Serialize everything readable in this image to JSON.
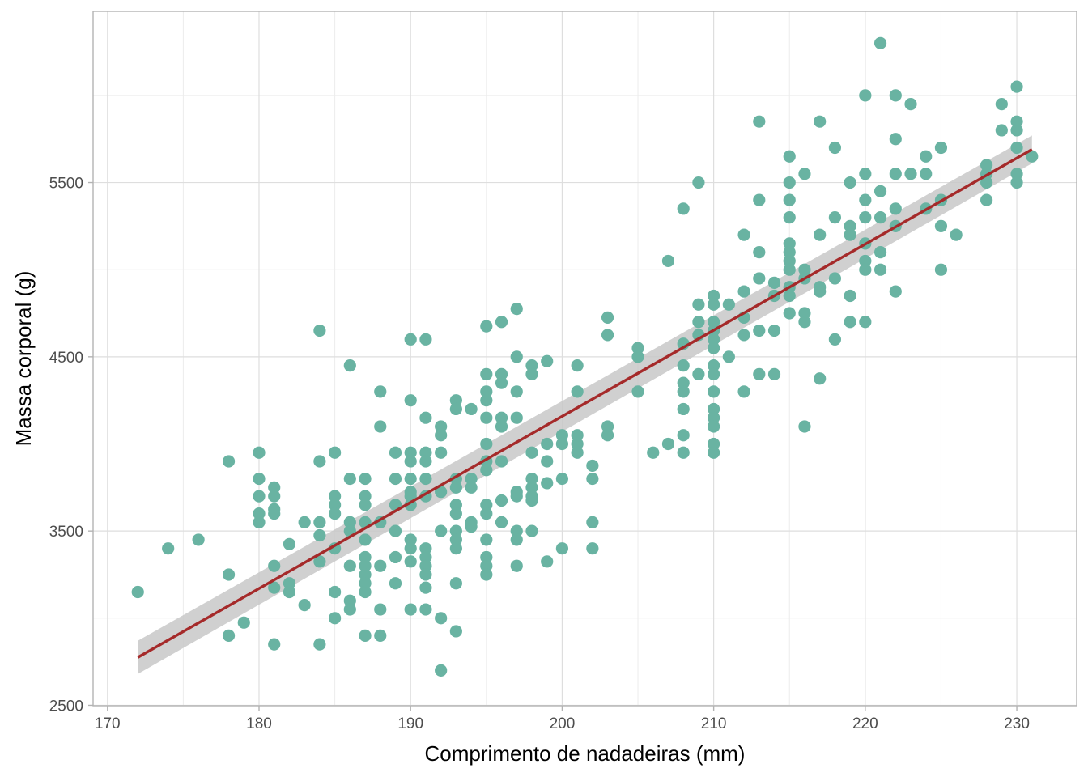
{
  "chart_data": {
    "type": "scatter",
    "title": "",
    "xlabel": "Comprimento de nadadeiras (mm)",
    "ylabel": "Massa corporal (g)",
    "xlim": [
      169.05,
      233.95
    ],
    "ylim": [
      2497.5,
      6482.5
    ],
    "x_ticks": [
      "170",
      "180",
      "190",
      "200",
      "210",
      "220",
      "230"
    ],
    "y_ticks": [
      "2500",
      "3500",
      "4500",
      "5500"
    ],
    "grid": true,
    "point_color": "#69b3a2",
    "line_color": "#a52a2a",
    "ribbon_color": "#c8c8c8",
    "regression": {
      "x": [
        172,
        231
      ],
      "fit": [
        2775,
        5690
      ],
      "lower": [
        2680,
        5610
      ],
      "upper": [
        2870,
        5770
      ]
    },
    "points": [
      [
        172,
        3150
      ],
      [
        174,
        3400
      ],
      [
        176,
        3450
      ],
      [
        178,
        3900
      ],
      [
        178,
        3250
      ],
      [
        178,
        2900
      ],
      [
        179,
        2975
      ],
      [
        180,
        3950
      ],
      [
        180,
        3800
      ],
      [
        180,
        3700
      ],
      [
        180,
        3600
      ],
      [
        180,
        3550
      ],
      [
        181,
        3750
      ],
      [
        181,
        3700
      ],
      [
        181,
        3625
      ],
      [
        181,
        3600
      ],
      [
        181,
        3300
      ],
      [
        181,
        3175
      ],
      [
        181,
        2850
      ],
      [
        182,
        3425
      ],
      [
        182,
        3200
      ],
      [
        182,
        3150
      ],
      [
        183,
        3550
      ],
      [
        183,
        3075
      ],
      [
        184,
        4650
      ],
      [
        184,
        3900
      ],
      [
        184,
        3550
      ],
      [
        184,
        3475
      ],
      [
        184,
        3325
      ],
      [
        184,
        2850
      ],
      [
        185,
        3950
      ],
      [
        185,
        3700
      ],
      [
        185,
        3650
      ],
      [
        185,
        3600
      ],
      [
        185,
        3400
      ],
      [
        185,
        3150
      ],
      [
        185,
        3000
      ],
      [
        186,
        4450
      ],
      [
        186,
        3800
      ],
      [
        186,
        3550
      ],
      [
        186,
        3500
      ],
      [
        186,
        3300
      ],
      [
        186,
        3100
      ],
      [
        186,
        3050
      ],
      [
        187,
        3800
      ],
      [
        187,
        3700
      ],
      [
        187,
        3650
      ],
      [
        187,
        3550
      ],
      [
        187,
        3450
      ],
      [
        187,
        3350
      ],
      [
        187,
        3300
      ],
      [
        187,
        3250
      ],
      [
        187,
        3200
      ],
      [
        187,
        3150
      ],
      [
        187,
        2900
      ],
      [
        188,
        4300
      ],
      [
        188,
        4100
      ],
      [
        188,
        3550
      ],
      [
        188,
        3300
      ],
      [
        188,
        3050
      ],
      [
        188,
        2900
      ],
      [
        189,
        3950
      ],
      [
        189,
        3800
      ],
      [
        189,
        3650
      ],
      [
        189,
        3500
      ],
      [
        189,
        3350
      ],
      [
        189,
        3200
      ],
      [
        190,
        4600
      ],
      [
        190,
        4250
      ],
      [
        190,
        3950
      ],
      [
        190,
        3900
      ],
      [
        190,
        3800
      ],
      [
        190,
        3725
      ],
      [
        190,
        3700
      ],
      [
        190,
        3650
      ],
      [
        190,
        3450
      ],
      [
        190,
        3400
      ],
      [
        190,
        3325
      ],
      [
        190,
        3050
      ],
      [
        191,
        4600
      ],
      [
        191,
        4150
      ],
      [
        191,
        3950
      ],
      [
        191,
        3900
      ],
      [
        191,
        3800
      ],
      [
        191,
        3700
      ],
      [
        191,
        3400
      ],
      [
        191,
        3350
      ],
      [
        191,
        3300
      ],
      [
        191,
        3250
      ],
      [
        191,
        3175
      ],
      [
        191,
        3050
      ],
      [
        192,
        4100
      ],
      [
        192,
        4050
      ],
      [
        192,
        3950
      ],
      [
        192,
        3725
      ],
      [
        192,
        3500
      ],
      [
        192,
        3000
      ],
      [
        192,
        2700
      ],
      [
        193,
        4250
      ],
      [
        193,
        4200
      ],
      [
        193,
        3800
      ],
      [
        193,
        3750
      ],
      [
        193,
        3650
      ],
      [
        193,
        3600
      ],
      [
        193,
        3500
      ],
      [
        193,
        3450
      ],
      [
        193,
        3400
      ],
      [
        193,
        3200
      ],
      [
        193,
        2925
      ],
      [
        194,
        4200
      ],
      [
        194,
        3800
      ],
      [
        194,
        3750
      ],
      [
        194,
        3550
      ],
      [
        194,
        3525
      ],
      [
        195,
        4675
      ],
      [
        195,
        4400
      ],
      [
        195,
        4300
      ],
      [
        195,
        4250
      ],
      [
        195,
        4150
      ],
      [
        195,
        4000
      ],
      [
        195,
        3900
      ],
      [
        195,
        3850
      ],
      [
        195,
        3650
      ],
      [
        195,
        3600
      ],
      [
        195,
        3450
      ],
      [
        195,
        3350
      ],
      [
        195,
        3300
      ],
      [
        195,
        3250
      ],
      [
        196,
        4700
      ],
      [
        196,
        4400
      ],
      [
        196,
        4350
      ],
      [
        196,
        4150
      ],
      [
        196,
        4100
      ],
      [
        196,
        3900
      ],
      [
        196,
        3675
      ],
      [
        196,
        3550
      ],
      [
        197,
        4775
      ],
      [
        197,
        4500
      ],
      [
        197,
        4300
      ],
      [
        197,
        4150
      ],
      [
        197,
        3725
      ],
      [
        197,
        3700
      ],
      [
        197,
        3500
      ],
      [
        197,
        3450
      ],
      [
        197,
        3300
      ],
      [
        198,
        4450
      ],
      [
        198,
        4400
      ],
      [
        198,
        3950
      ],
      [
        198,
        3800
      ],
      [
        198,
        3750
      ],
      [
        198,
        3700
      ],
      [
        198,
        3675
      ],
      [
        198,
        3500
      ],
      [
        199,
        4475
      ],
      [
        199,
        4000
      ],
      [
        199,
        3900
      ],
      [
        199,
        3775
      ],
      [
        199,
        3325
      ],
      [
        200,
        4050
      ],
      [
        200,
        4000
      ],
      [
        200,
        3800
      ],
      [
        200,
        3400
      ],
      [
        201,
        4450
      ],
      [
        201,
        4300
      ],
      [
        201,
        4050
      ],
      [
        201,
        4000
      ],
      [
        201,
        3950
      ],
      [
        202,
        3875
      ],
      [
        202,
        3800
      ],
      [
        202,
        3550
      ],
      [
        202,
        3400
      ],
      [
        203,
        4725
      ],
      [
        203,
        4625
      ],
      [
        203,
        4100
      ],
      [
        203,
        4050
      ],
      [
        205,
        4550
      ],
      [
        205,
        4500
      ],
      [
        205,
        4300
      ],
      [
        206,
        3950
      ],
      [
        207,
        5050
      ],
      [
        207,
        4000
      ],
      [
        208,
        5350
      ],
      [
        208,
        4575
      ],
      [
        208,
        4450
      ],
      [
        208,
        4350
      ],
      [
        208,
        4300
      ],
      [
        208,
        4200
      ],
      [
        208,
        4050
      ],
      [
        208,
        3950
      ],
      [
        209,
        5500
      ],
      [
        209,
        4800
      ],
      [
        209,
        4700
      ],
      [
        209,
        4625
      ],
      [
        209,
        4400
      ],
      [
        210,
        4850
      ],
      [
        210,
        4800
      ],
      [
        210,
        4700
      ],
      [
        210,
        4650
      ],
      [
        210,
        4600
      ],
      [
        210,
        4550
      ],
      [
        210,
        4450
      ],
      [
        210,
        4400
      ],
      [
        210,
        4300
      ],
      [
        210,
        4200
      ],
      [
        210,
        4150
      ],
      [
        210,
        4100
      ],
      [
        210,
        4000
      ],
      [
        210,
        3950
      ],
      [
        211,
        4800
      ],
      [
        211,
        4500
      ],
      [
        212,
        5200
      ],
      [
        212,
        4875
      ],
      [
        212,
        4725
      ],
      [
        212,
        4625
      ],
      [
        212,
        4300
      ],
      [
        213,
        5850
      ],
      [
        213,
        5400
      ],
      [
        213,
        5100
      ],
      [
        213,
        4950
      ],
      [
        213,
        4650
      ],
      [
        213,
        4400
      ],
      [
        214,
        4925
      ],
      [
        214,
        4850
      ],
      [
        214,
        4650
      ],
      [
        214,
        4400
      ],
      [
        215,
        5650
      ],
      [
        215,
        5500
      ],
      [
        215,
        5400
      ],
      [
        215,
        5300
      ],
      [
        215,
        5150
      ],
      [
        215,
        5100
      ],
      [
        215,
        5050
      ],
      [
        215,
        5000
      ],
      [
        215,
        4900
      ],
      [
        215,
        4850
      ],
      [
        215,
        4750
      ],
      [
        216,
        5550
      ],
      [
        216,
        5000
      ],
      [
        216,
        4950
      ],
      [
        216,
        4750
      ],
      [
        216,
        4700
      ],
      [
        216,
        4100
      ],
      [
        217,
        5850
      ],
      [
        217,
        5200
      ],
      [
        217,
        4900
      ],
      [
        217,
        4875
      ],
      [
        217,
        4375
      ],
      [
        218,
        5700
      ],
      [
        218,
        5300
      ],
      [
        218,
        4950
      ],
      [
        218,
        4600
      ],
      [
        219,
        5500
      ],
      [
        219,
        5250
      ],
      [
        219,
        5200
      ],
      [
        219,
        4850
      ],
      [
        219,
        4700
      ],
      [
        220,
        6000
      ],
      [
        220,
        5550
      ],
      [
        220,
        5400
      ],
      [
        220,
        5300
      ],
      [
        220,
        5150
      ],
      [
        220,
        5050
      ],
      [
        220,
        5000
      ],
      [
        220,
        4700
      ],
      [
        221,
        6300
      ],
      [
        221,
        5450
      ],
      [
        221,
        5300
      ],
      [
        221,
        5100
      ],
      [
        221,
        5000
      ],
      [
        222,
        6000
      ],
      [
        222,
        5750
      ],
      [
        222,
        5550
      ],
      [
        222,
        5350
      ],
      [
        222,
        5250
      ],
      [
        222,
        4875
      ],
      [
        223,
        5950
      ],
      [
        223,
        5550
      ],
      [
        224,
        5650
      ],
      [
        224,
        5550
      ],
      [
        224,
        5350
      ],
      [
        225,
        5700
      ],
      [
        225,
        5400
      ],
      [
        225,
        5250
      ],
      [
        225,
        5000
      ],
      [
        226,
        5200
      ],
      [
        228,
        5600
      ],
      [
        228,
        5550
      ],
      [
        228,
        5500
      ],
      [
        228,
        5400
      ],
      [
        229,
        5950
      ],
      [
        229,
        5800
      ],
      [
        230,
        6050
      ],
      [
        230,
        5850
      ],
      [
        230,
        5800
      ],
      [
        230,
        5700
      ],
      [
        230,
        5550
      ],
      [
        230,
        5500
      ],
      [
        231,
        5650
      ]
    ]
  }
}
